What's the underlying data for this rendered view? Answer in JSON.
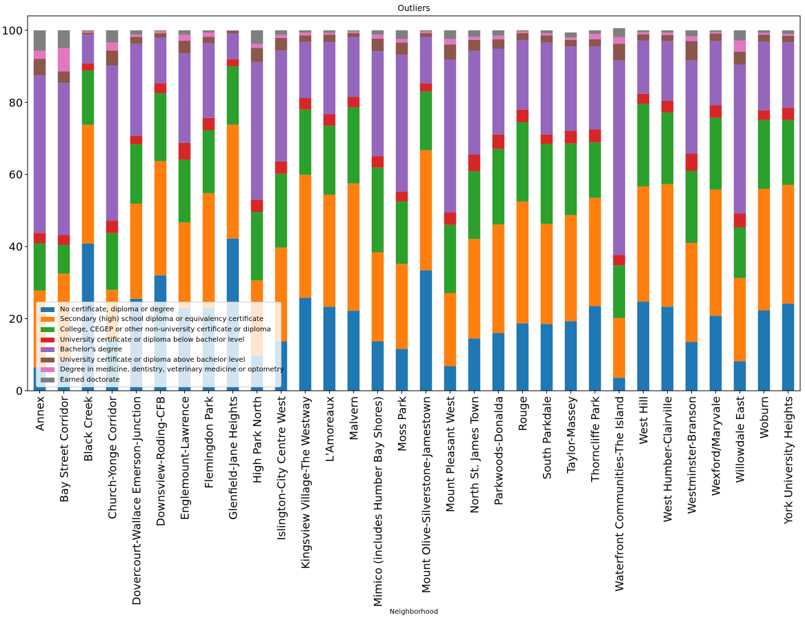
{
  "chart_data": {
    "type": "bar",
    "stacked": true,
    "title": "Outliers",
    "xlabel": "Neighborhood",
    "ylabel": "",
    "ylim": [
      0,
      104
    ],
    "yticks": [
      0,
      20,
      40,
      60,
      80,
      100
    ],
    "legend_position": "lower-left",
    "categories": [
      "Annex",
      "Bay Street Corridor",
      "Black Creek",
      "Church-Yonge Corridor",
      "Dovercourt-Wallace Emerson-Junction",
      "Downsview-Roding-CFB",
      "Englemount-Lawrence",
      "Flemingdon Park",
      "Glenfield-Jane Heights",
      "High Park North",
      "Islington-City Centre West",
      "Kingsview Village-The Westway",
      "L'Amoreaux",
      "Malvern",
      "Mimico (includes Humber Bay Shores)",
      "Moss Park",
      "Mount Olive-Silverstone-Jamestown",
      "Mount Pleasant West",
      "North St. James Town",
      "Parkwoods-Donalda",
      "Rouge",
      "South Parkdale",
      "Taylor-Massey",
      "Thorncliffe Park",
      "Waterfront Communities-The Island",
      "West Hill",
      "West Humber-Clairville",
      "Westminster-Branson",
      "Wexford/Maryvale",
      "Willowdale East",
      "Woburn",
      "York University Heights"
    ],
    "series": [
      {
        "name": "No certificate, diploma or degree",
        "color": "#1f77b4",
        "values": [
          6.5,
          8,
          40.8,
          14,
          25.5,
          32,
          23,
          23,
          42.2,
          9.8,
          13.7,
          25.8,
          23.3,
          22.2,
          13.7,
          11.6,
          33.4,
          6.8,
          14.5,
          16,
          18.7,
          18.5,
          19.3,
          23.5,
          3.6,
          24.7,
          23.3,
          13.5,
          20.8,
          8.2,
          22.3,
          24.2
        ]
      },
      {
        "name": "Secondary (high) school diploma or equivalency certificate",
        "color": "#ff7f0e",
        "values": [
          21.3,
          24.5,
          33,
          14,
          26.4,
          31.7,
          23.7,
          31.8,
          31.6,
          20.8,
          26,
          34.1,
          31.1,
          35.3,
          24.7,
          23.6,
          33.3,
          20.3,
          27.6,
          30.1,
          33.8,
          27.8,
          29.4,
          30,
          16.6,
          32,
          34,
          27.5,
          35,
          23.1,
          33.7,
          32.9
        ]
      },
      {
        "name": "College, CEGEP or other non-university certificate or diploma",
        "color": "#2ca02c",
        "values": [
          13.1,
          8,
          15,
          15.7,
          16.5,
          18.8,
          17.4,
          17.5,
          16.2,
          19,
          20.5,
          18.1,
          19.1,
          21.1,
          23.5,
          17.3,
          16.3,
          18.9,
          18.8,
          21,
          22,
          22.1,
          19.9,
          15.4,
          14.6,
          22.9,
          19.9,
          20,
          19.9,
          14,
          19.1,
          18
        ]
      },
      {
        "name": "University certificate or diploma below bachelor level",
        "color": "#d62728",
        "values": [
          2.9,
          2.7,
          2,
          3.5,
          2.3,
          2.8,
          4.7,
          3.4,
          2,
          3.4,
          3.4,
          3.2,
          3.2,
          2.9,
          3.2,
          2.8,
          2.3,
          3.5,
          4.6,
          4,
          3.5,
          2.7,
          3.5,
          3.6,
          2.9,
          2.8,
          3.3,
          4.8,
          3.5,
          3.9,
          2.7,
          3.4
        ]
      },
      {
        "name": "Bachelor's degree",
        "color": "#9467bd",
        "values": [
          43.7,
          42.2,
          8,
          43,
          25.5,
          12.6,
          24.8,
          20.7,
          7.1,
          38.2,
          30.8,
          15.6,
          20,
          16.6,
          29.1,
          37.9,
          12.8,
          42.3,
          28.8,
          23.8,
          19.3,
          25.5,
          23.4,
          23,
          53.9,
          14.8,
          16.6,
          25.8,
          17.9,
          41.3,
          19,
          18.2
        ]
      },
      {
        "name": "University certificate or diploma above bachelor level",
        "color": "#8c564b",
        "values": [
          4.6,
          3.2,
          0.5,
          4.2,
          2,
          1.3,
          3.5,
          1.8,
          0.8,
          3.9,
          3.5,
          1.8,
          2.1,
          1.1,
          3.5,
          3.4,
          1.1,
          4.3,
          3,
          2.6,
          1.9,
          2,
          1.8,
          2,
          4.7,
          1.7,
          1.6,
          5.4,
          2,
          3.6,
          2,
          1.8
        ]
      },
      {
        "name": "Degree in medicine, dentistry, veterinary medicine or optometry",
        "color": "#e377c2",
        "values": [
          2.2,
          6.5,
          0.4,
          2.2,
          0.6,
          0.6,
          1.6,
          1.2,
          0.1,
          1.1,
          0.8,
          0.8,
          0.5,
          0.5,
          1.1,
          1,
          0.5,
          1.5,
          0.9,
          1,
          0.5,
          0.6,
          0.7,
          1.5,
          1.8,
          0.6,
          0.7,
          1.3,
          0.5,
          3.1,
          0.5,
          0.5
        ]
      },
      {
        "name": "Earned doctorate",
        "color": "#7f7f7f",
        "values": [
          5.7,
          4.9,
          0.3,
          3.4,
          1.2,
          0.2,
          1.3,
          0.6,
          0,
          3.8,
          1.3,
          0.6,
          0.7,
          0.3,
          1.2,
          2.4,
          0.3,
          2.4,
          1.8,
          1.5,
          0.3,
          0.8,
          1.4,
          1,
          2.5,
          0.5,
          0.6,
          1.7,
          0.4,
          2.8,
          0.7,
          1
        ]
      }
    ]
  }
}
